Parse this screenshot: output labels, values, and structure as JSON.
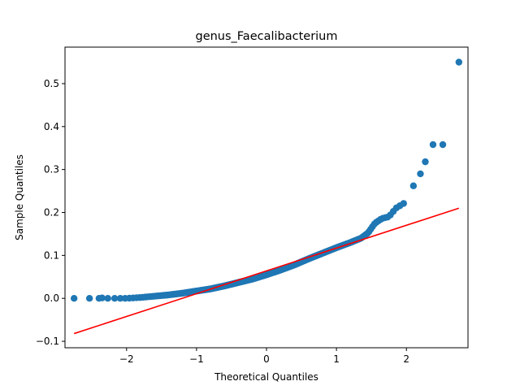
{
  "chart_data": {
    "type": "scatter",
    "title": "genus_Faecalibacterium",
    "xlabel": "Theoretical Quantiles",
    "ylabel": "Sample Quantiles",
    "xlim": [
      -2.88,
      2.88
    ],
    "ylim": [
      -0.115,
      0.585
    ],
    "xticks": [
      -2,
      -1,
      0,
      1,
      2
    ],
    "yticks": [
      -0.1,
      0.0,
      0.1,
      0.2,
      0.3,
      0.4,
      0.5
    ],
    "grid": false,
    "marker_color": "#1f77b4",
    "line_color": "#ff0000",
    "reference_line": {
      "x": [
        -2.75,
        2.75
      ],
      "y": [
        -0.082,
        0.21
      ]
    },
    "curve_knots": [
      [
        -2.45,
        0.0
      ],
      [
        -2.0,
        0.0
      ],
      [
        -1.8,
        0.002
      ],
      [
        -1.6,
        0.005
      ],
      [
        -1.4,
        0.008
      ],
      [
        -1.2,
        0.012
      ],
      [
        -1.0,
        0.017
      ],
      [
        -0.8,
        0.022
      ],
      [
        -0.6,
        0.029
      ],
      [
        -0.4,
        0.037
      ],
      [
        -0.2,
        0.045
      ],
      [
        0.0,
        0.055
      ],
      [
        0.2,
        0.066
      ],
      [
        0.4,
        0.078
      ],
      [
        0.6,
        0.092
      ],
      [
        0.8,
        0.105
      ],
      [
        1.0,
        0.118
      ],
      [
        1.2,
        0.13
      ],
      [
        1.35,
        0.14
      ],
      [
        1.45,
        0.152
      ],
      [
        1.55,
        0.175
      ],
      [
        1.65,
        0.186
      ],
      [
        1.75,
        0.19
      ],
      [
        1.85,
        0.21
      ],
      [
        2.0,
        0.225
      ]
    ],
    "extreme_points": [
      [
        -2.75,
        0.0
      ],
      [
        -2.53,
        0.0
      ],
      [
        -2.35,
        0.001
      ],
      [
        2.1,
        0.262
      ],
      [
        2.2,
        0.29
      ],
      [
        2.27,
        0.318
      ],
      [
        2.38,
        0.358
      ],
      [
        2.52,
        0.358
      ],
      [
        2.75,
        0.55
      ]
    ]
  }
}
